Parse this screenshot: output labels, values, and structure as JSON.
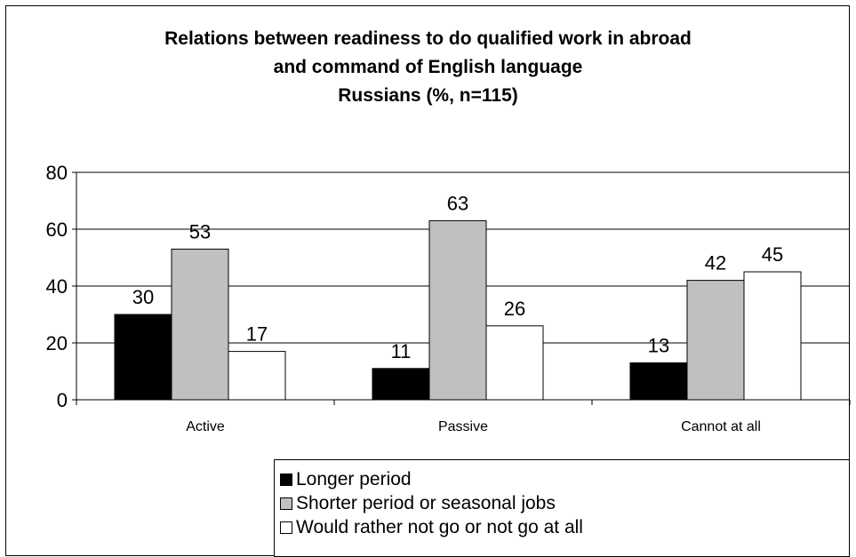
{
  "chart_data": {
    "type": "bar",
    "title_lines": [
      "Relations between readiness to do qualified work in abroad",
      "and command of English language",
      "Russians (%, n=115)"
    ],
    "categories": [
      "Active",
      "Passive",
      "Cannot at all"
    ],
    "series": [
      {
        "name": "Longer period",
        "values": [
          30,
          11,
          13
        ],
        "color": "#000000"
      },
      {
        "name": "Shorter period or seasonal jobs",
        "values": [
          53,
          63,
          42
        ],
        "color": "#c0c0c0"
      },
      {
        "name": "Would rather not go or not go at all",
        "values": [
          17,
          26,
          45
        ],
        "color": "#ffffff"
      }
    ],
    "ylim": [
      0,
      80
    ],
    "yticks": [
      0,
      20,
      40,
      60,
      80
    ],
    "grid": true,
    "legend_position": "bottom"
  }
}
